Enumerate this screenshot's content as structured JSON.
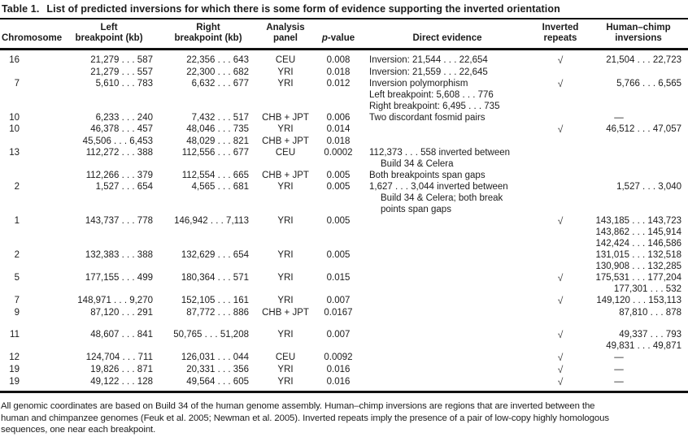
{
  "title": {
    "label": "Table 1.",
    "text": "List of predicted inversions for which there is some form of evidence supporting the inverted orientation"
  },
  "header": {
    "chromosome": "Chromosome",
    "left_bp": [
      "Left",
      "breakpoint (kb)"
    ],
    "right_bp": [
      "Right",
      "breakpoint (kb)"
    ],
    "panel": [
      "Analysis",
      "panel"
    ],
    "pvalue": {
      "italic": "p",
      "rest": "-value"
    },
    "evidence": "Direct evidence",
    "repeats": [
      "Inverted",
      "repeats"
    ],
    "hc": [
      "Human–chimp",
      "inversions"
    ]
  },
  "check_icon": "√",
  "rows": [
    {
      "chrom": "16",
      "left": "21,279 . . . 587",
      "right": "22,356 . . . 643",
      "panel": "CEU",
      "p": "0.008",
      "evidence": [
        {
          "t": "Inversion: 21,544 . . . 22,654",
          "ind": false
        }
      ],
      "repeats": "√",
      "hc": [
        "21,504 . . . 22,723"
      ]
    },
    {
      "chrom": "",
      "left": "21,279 . . . 557",
      "right": "22,300 . . . 682",
      "panel": "YRI",
      "p": "0.018",
      "evidence": [
        {
          "t": "Inversion: 21,559 . . . 22,645",
          "ind": false
        }
      ],
      "repeats": "",
      "hc": []
    },
    {
      "chrom": "7",
      "left": "5,610 . . . 783",
      "right": "6,632 . . . 677",
      "panel": "YRI",
      "p": "0.012",
      "evidence": [
        {
          "t": "Inversion polymorphism",
          "ind": false
        },
        {
          "t": "Left breakpoint: 5,608 . . . 776",
          "ind": false
        },
        {
          "t": "Right breakpoint: 6,495 . . . 735",
          "ind": false
        }
      ],
      "repeats": "√",
      "hc": [
        "5,766 . . . 6,565"
      ]
    },
    {
      "chrom": "10",
      "left": "6,233 . . . 240",
      "right": "7,432 . . . 517",
      "panel": "CHB + JPT",
      "p": "0.006",
      "evidence": [
        {
          "t": "Two discordant fosmid pairs",
          "ind": false
        }
      ],
      "repeats": "",
      "hc": [
        "—"
      ]
    },
    {
      "chrom": "10",
      "left": "46,378 . . . 457",
      "right": "48,046 . . . 735",
      "panel": "YRI",
      "p": "0.014",
      "evidence": [],
      "repeats": "√",
      "hc": [
        "46,512 . . . 47,057"
      ]
    },
    {
      "chrom": "",
      "left": "45,506 . . . 6,453",
      "right": "48,029 . . . 821",
      "panel": "CHB + JPT",
      "p": "0.018",
      "evidence": [],
      "repeats": "",
      "hc": []
    },
    {
      "chrom": "13",
      "left": "112,272 . . . 388",
      "right": "112,556 . . . 677",
      "panel": "CEU",
      "p": "0.0002",
      "evidence": [
        {
          "t": "112,373 . . . 558 inverted between",
          "ind": false
        },
        {
          "t": "Build 34 & Celera",
          "ind": true
        }
      ],
      "repeats": "",
      "hc": []
    },
    {
      "chrom": "",
      "left": "112,266 . . . 379",
      "right": "112,554 . . . 665",
      "panel": "CHB + JPT",
      "p": "0.005",
      "evidence": [
        {
          "t": "Both breakpoints span gaps",
          "ind": false
        }
      ],
      "repeats": "",
      "hc": []
    },
    {
      "chrom": "2",
      "left": "1,527 . . . 654",
      "right": "4,565 . . . 681",
      "panel": "YRI",
      "p": "0.005",
      "evidence": [
        {
          "t": "1,627 . . . 3,044 inverted between",
          "ind": false
        },
        {
          "t": "Build 34 & Celera; both break",
          "ind": true
        },
        {
          "t": "points span gaps",
          "ind": true
        }
      ],
      "repeats": "",
      "hc": [
        "1,527 . . . 3,040"
      ]
    },
    {
      "chrom": "1",
      "left": "143,737 . . . 778",
      "right": "146,942 . . . 7,113",
      "panel": "YRI",
      "p": "0.005",
      "evidence": [],
      "repeats": "√",
      "hc": [
        "143,185 . . . 143,723",
        "143,862 . . . 145,914",
        "142,424 . . . 146,586"
      ]
    },
    {
      "chrom": "2",
      "left": "132,383 . . . 388",
      "right": "132,629 . . . 654",
      "panel": "YRI",
      "p": "0.005",
      "evidence": [],
      "repeats": "",
      "hc": [
        "131,015 . . . 132,518",
        "130,908 . . . 132,285"
      ]
    },
    {
      "chrom": "5",
      "left": "177,155 . . . 499",
      "right": "180,364 . . . 571",
      "panel": "YRI",
      "p": "0.015",
      "evidence": [],
      "repeats": "√",
      "hc": [
        "175,531 . . . 177,204",
        "177,301 . . . 532"
      ]
    },
    {
      "chrom": "7",
      "left": "148,971 . . . 9,270",
      "right": "152,105 . . . 161",
      "panel": "YRI",
      "p": "0.007",
      "evidence": [],
      "repeats": "√",
      "hc": [
        "149,120 . . . 153,113"
      ]
    },
    {
      "chrom": "9",
      "left": "87,120 . . . 291",
      "right": "87,772 . . . 886",
      "panel": "CHB + JPT",
      "p": "0.0167",
      "evidence": [],
      "repeats": "",
      "hc": [
        "87,810 . . . 878"
      ]
    },
    {
      "chrom": "11",
      "left": "48,607 . . . 841",
      "right": "50,765 . . . 51,208",
      "panel": "YRI",
      "p": "0.007",
      "evidence": [],
      "repeats": "√",
      "hc": [
        "49,337 . . . 793",
        "49,831 . . . 49,871"
      ]
    },
    {
      "chrom": "12",
      "left": "124,704 . . . 711",
      "right": "126,031 . . . 044",
      "panel": "CEU",
      "p": "0.0092",
      "evidence": [],
      "repeats": "√",
      "hc": [
        "—"
      ]
    },
    {
      "chrom": "19",
      "left": "19,826 . . . 871",
      "right": "20,331 . . . 356",
      "panel": "YRI",
      "p": "0.016",
      "evidence": [],
      "repeats": "√",
      "hc": [
        "—"
      ]
    },
    {
      "chrom": "19",
      "left": "49,122 . . . 128",
      "right": "49,564 . . . 605",
      "panel": "YRI",
      "p": "0.016",
      "evidence": [],
      "repeats": "√",
      "hc": [
        "—"
      ]
    }
  ],
  "footnote_lines": [
    "All genomic coordinates are based on Build 34 of the human genome assembly. Human–chimp inversions are regions that are inverted between the",
    "human and chimpanzee genomes (Feuk et al. 2005; Newman et al. 2005). Inverted repeats imply the presence of a pair of low-copy highly homologous",
    "sequences, one near each breakpoint."
  ]
}
